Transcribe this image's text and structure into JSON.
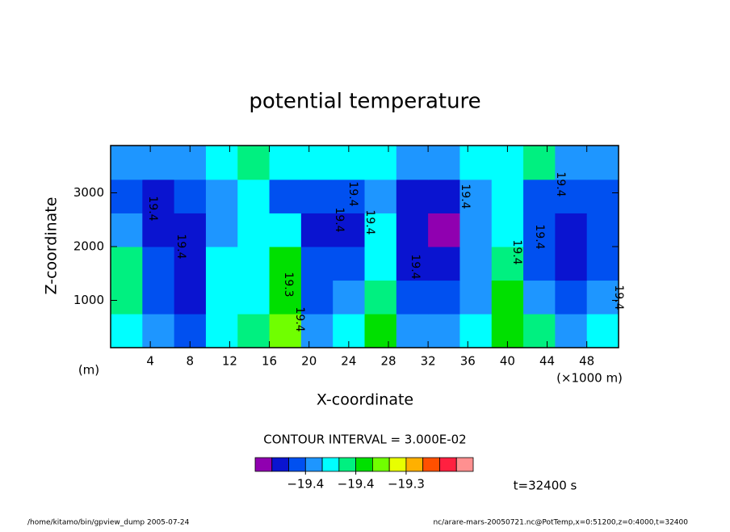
{
  "chart_data": {
    "type": "contour",
    "title": "potential temperature",
    "xlabel": "X-coordinate",
    "ylabel": "Z-coordinate",
    "xunit": "(×1000 m)",
    "yunit": "(m)",
    "xlim": [
      0,
      51.2
    ],
    "ylim": [
      120,
      3880
    ],
    "xticks": [
      4,
      8,
      12,
      16,
      20,
      24,
      28,
      32,
      36,
      40,
      44,
      48
    ],
    "yticks": [
      1000,
      2000,
      3000
    ],
    "x": [
      1.6,
      4.8,
      8,
      11.2,
      14.4,
      17.6,
      20.8,
      24,
      27.2,
      30.4,
      33.6,
      36.8,
      40,
      43.2,
      46.4,
      49.6
    ],
    "y": [
      437.5,
      1062.5,
      1687.5,
      2312.5,
      2937.5,
      3562.5
    ],
    "z": [
      [
        -19.4,
        -19.43,
        -19.45,
        -19.4,
        -19.38,
        -19.3,
        -19.42,
        -19.4,
        -19.35,
        -19.42,
        -19.43,
        -19.4,
        -19.33,
        -19.38,
        -19.42,
        -19.41
      ],
      [
        -19.38,
        -19.45,
        -19.48,
        -19.41,
        -19.4,
        -19.33,
        -19.45,
        -19.44,
        -19.37,
        -19.46,
        -19.47,
        -19.42,
        -19.34,
        -19.42,
        -19.46,
        -19.43
      ],
      [
        -19.37,
        -19.47,
        -19.48,
        -19.39,
        -19.41,
        -19.35,
        -19.47,
        -19.47,
        -19.39,
        -19.48,
        -19.49,
        -19.43,
        -19.36,
        -19.45,
        -19.48,
        -19.45
      ],
      [
        -19.43,
        -19.48,
        -19.48,
        -19.42,
        -19.4,
        -19.4,
        -19.48,
        -19.48,
        -19.41,
        -19.48,
        -19.51,
        -19.44,
        -19.39,
        -19.47,
        -19.48,
        -19.47
      ],
      [
        -19.46,
        -19.48,
        -19.46,
        -19.43,
        -19.41,
        -19.45,
        -19.46,
        -19.47,
        -19.42,
        -19.48,
        -19.49,
        -19.42,
        -19.41,
        -19.47,
        -19.46,
        -19.47
      ],
      [
        -19.42,
        -19.44,
        -19.42,
        -19.4,
        -19.37,
        -19.39,
        -19.41,
        -19.4,
        -19.39,
        -19.44,
        -19.43,
        -19.4,
        -19.4,
        -19.38,
        -19.42,
        -19.43
      ]
    ],
    "contour_labels": [
      "19.4",
      "19.4",
      "19.3",
      "19.4",
      "19.4",
      "19.4",
      "19.4",
      "19.4",
      "19.4",
      "19.4",
      "19.4",
      "19.4",
      "19.4"
    ],
    "contour_interval": "CONTOUR INTERVAL = 3.000E-02",
    "levels": [
      -19.5,
      -19.47,
      -19.44,
      -19.41,
      -19.38,
      -19.35,
      -19.32,
      -19.29,
      -19.26,
      -19.23,
      -19.2,
      -19.17
    ],
    "colors": [
      "#9000b0",
      "#0a14d0",
      "#0050f0",
      "#1e96ff",
      "#00ffff",
      "#00f080",
      "#00e000",
      "#70ff00",
      "#e8ff00",
      "#ffb000",
      "#ff5000",
      "#ff2040",
      "#ff9090"
    ],
    "colorbar_ticks": [
      {
        "value": -19.44,
        "label": "−19.4"
      },
      {
        "value": -19.35,
        "label": "−19.4"
      },
      {
        "value": -19.26,
        "label": "−19.3"
      }
    ],
    "time": "t=32400 s",
    "footer_left": "/home/kitamo/bin/gpview_dump  2005-07-24",
    "footer_right": "nc/arare-mars-20050721.nc@PotTemp,x=0:51200,z=0:4000,t=32400"
  }
}
